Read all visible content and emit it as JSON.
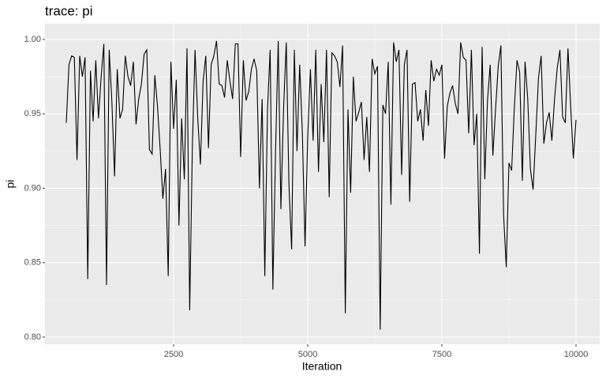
{
  "chart_data": {
    "type": "line",
    "title": "trace: pi",
    "xlabel": "Iteration",
    "ylabel": "pi",
    "x": [
      500,
      550,
      600,
      650,
      700,
      750,
      800,
      850,
      900,
      950,
      1000,
      1050,
      1100,
      1150,
      1200,
      1250,
      1300,
      1350,
      1400,
      1450,
      1500,
      1550,
      1600,
      1650,
      1700,
      1750,
      1800,
      1850,
      1900,
      1950,
      2000,
      2050,
      2100,
      2150,
      2200,
      2250,
      2300,
      2350,
      2400,
      2450,
      2500,
      2550,
      2600,
      2650,
      2700,
      2750,
      2800,
      2850,
      2900,
      2950,
      3000,
      3050,
      3100,
      3150,
      3200,
      3250,
      3300,
      3350,
      3400,
      3450,
      3500,
      3550,
      3600,
      3650,
      3700,
      3750,
      3800,
      3850,
      3900,
      3950,
      4000,
      4050,
      4100,
      4150,
      4200,
      4250,
      4300,
      4350,
      4400,
      4450,
      4500,
      4550,
      4600,
      4650,
      4700,
      4750,
      4800,
      4850,
      4900,
      4950,
      5000,
      5050,
      5100,
      5150,
      5200,
      5250,
      5300,
      5350,
      5400,
      5450,
      5500,
      5550,
      5600,
      5650,
      5700,
      5750,
      5800,
      5850,
      5900,
      5950,
      6000,
      6050,
      6100,
      6150,
      6200,
      6250,
      6300,
      6350,
      6400,
      6450,
      6500,
      6550,
      6600,
      6650,
      6700,
      6750,
      6800,
      6850,
      6900,
      6950,
      7000,
      7050,
      7100,
      7150,
      7200,
      7250,
      7300,
      7350,
      7400,
      7450,
      7500,
      7550,
      7600,
      7650,
      7700,
      7750,
      7800,
      7850,
      7900,
      7950,
      8000,
      8050,
      8100,
      8150,
      8200,
      8250,
      8300,
      8350,
      8400,
      8450,
      8500,
      8550,
      8600,
      8650,
      8700,
      8750,
      8800,
      8850,
      8900,
      8950,
      9000,
      9050,
      9100,
      9150,
      9200,
      9250,
      9300,
      9350,
      9400,
      9450,
      9500,
      9550,
      9600,
      9650,
      9700,
      9750,
      9800,
      9850,
      9900,
      9950,
      10000
    ],
    "series": [
      {
        "name": "pi",
        "color": "#000000",
        "values": [
          0.944,
          0.983,
          0.989,
          0.988,
          0.919,
          0.989,
          0.975,
          0.988,
          0.839,
          0.979,
          0.945,
          0.986,
          0.947,
          0.975,
          0.997,
          0.835,
          0.993,
          0.958,
          0.908,
          0.98,
          0.947,
          0.953,
          0.989,
          0.975,
          0.969,
          0.985,
          0.943,
          0.96,
          0.97,
          0.99,
          0.993,
          0.926,
          0.923,
          0.976,
          0.955,
          0.926,
          0.893,
          0.913,
          0.841,
          0.985,
          0.94,
          0.973,
          0.875,
          0.947,
          0.906,
          0.994,
          0.818,
          0.928,
          0.993,
          0.947,
          0.916,
          0.972,
          0.989,
          0.927,
          0.983,
          0.989,
          0.999,
          0.97,
          0.969,
          0.961,
          0.986,
          0.972,
          0.96,
          0.997,
          0.997,
          0.921,
          0.986,
          0.959,
          0.965,
          0.98,
          0.987,
          0.979,
          0.9,
          0.96,
          0.841,
          0.953,
          0.993,
          0.832,
          0.925,
          0.999,
          0.886,
          0.954,
          0.998,
          0.902,
          0.859,
          0.993,
          0.925,
          0.983,
          0.937,
          0.861,
          0.935,
          0.98,
          0.932,
          0.993,
          0.911,
          0.97,
          0.931,
          0.993,
          0.894,
          0.991,
          0.989,
          0.985,
          0.968,
          0.996,
          0.816,
          0.953,
          0.897,
          0.975,
          0.945,
          0.951,
          0.958,
          0.919,
          0.948,
          0.911,
          0.987,
          0.977,
          0.982,
          0.805,
          0.956,
          0.95,
          0.985,
          0.889,
          0.998,
          0.985,
          0.993,
          0.909,
          0.983,
          0.993,
          0.891,
          0.97,
          0.971,
          0.945,
          0.953,
          0.932,
          0.966,
          0.942,
          0.986,
          0.972,
          0.98,
          0.976,
          0.983,
          0.92,
          0.955,
          0.964,
          0.969,
          0.957,
          0.95,
          0.998,
          0.988,
          0.986,
          0.937,
          0.993,
          0.929,
          0.95,
          0.856,
          0.995,
          0.906,
          0.959,
          0.983,
          0.922,
          0.953,
          0.982,
          0.996,
          0.882,
          0.847,
          0.917,
          0.912,
          0.954,
          0.986,
          0.978,
          0.905,
          0.985,
          0.96,
          0.913,
          0.899,
          0.936,
          0.974,
          0.989,
          0.93,
          0.944,
          0.951,
          0.932,
          0.96,
          0.981,
          0.993,
          0.948,
          0.944,
          0.994,
          0.955,
          0.92,
          0.946
        ]
      }
    ],
    "xlim": [
      103,
      10441
    ],
    "xticks": [
      2500,
      5000,
      7500,
      10000
    ],
    "ylim": [
      0.7952,
      1.0106
    ],
    "yticks": [
      {
        "value": 0.8,
        "label": "0.80"
      },
      {
        "value": 0.85,
        "label": "0.85"
      },
      {
        "value": 0.9,
        "label": "0.90"
      },
      {
        "value": 0.95,
        "label": "0.95"
      },
      {
        "value": 1.0,
        "label": "1.00"
      }
    ],
    "grid": true
  }
}
